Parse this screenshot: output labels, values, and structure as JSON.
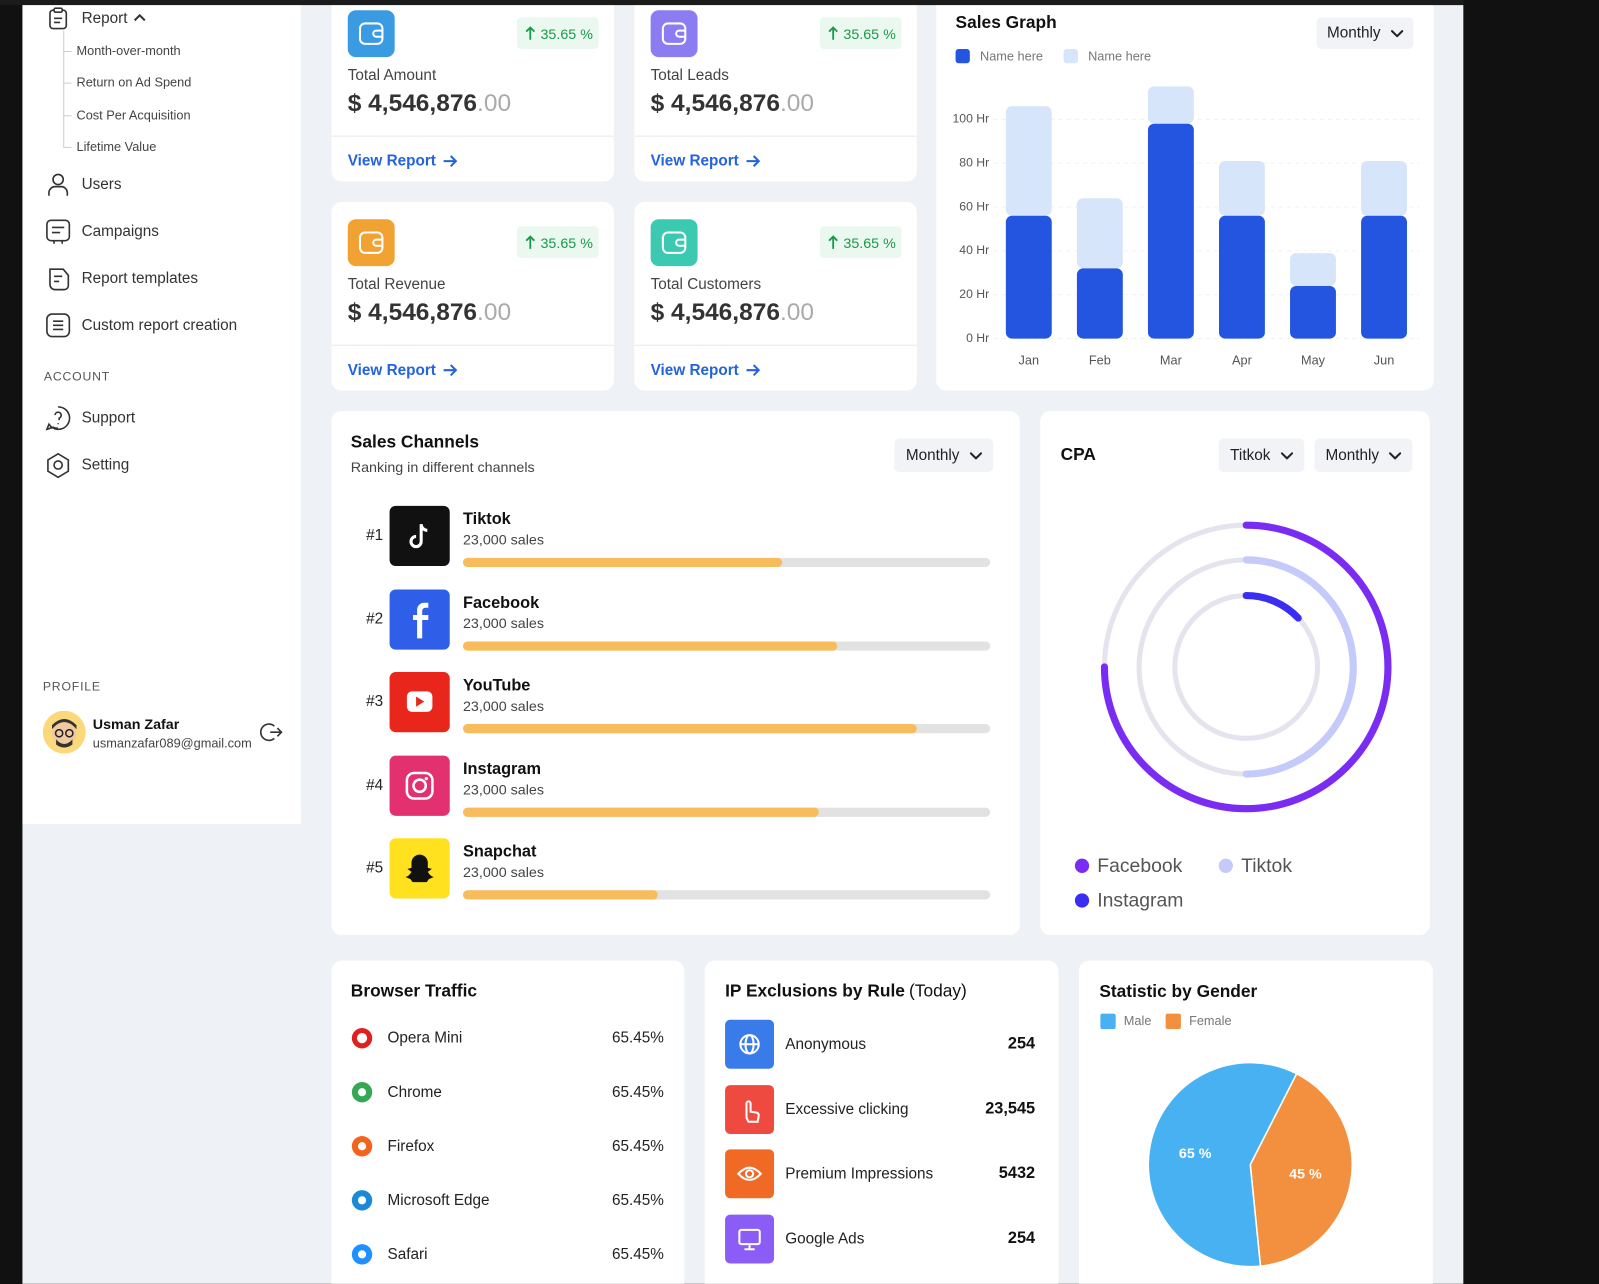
{
  "sidebar": {
    "report_menu": {
      "label": "Report",
      "items": [
        "Month-over-month",
        "Return on Ad Spend",
        "Cost Per Acquisition",
        "Lifetime Value"
      ]
    },
    "nav": [
      "Users",
      "Campaigns",
      "Report templates",
      "Custom report creation"
    ],
    "account_heading": "ACCOUNT",
    "account_nav": [
      "Support",
      "Setting"
    ],
    "profile_heading": "PROFILE",
    "profile": {
      "name": "Usman Zafar",
      "email": "usmanzafar089@gmail.com"
    }
  },
  "stat_cards": [
    {
      "label": "Total Amount",
      "amount": "$ 4,546,876",
      "decimals": ".00",
      "change": "35.65 %",
      "link": "View Report",
      "color": "#3a9be2"
    },
    {
      "label": "Total Leads",
      "amount": "$ 4,546,876",
      "decimals": ".00",
      "change": "35.65 %",
      "link": "View Report",
      "color": "#8b7cf2"
    },
    {
      "label": "Total Revenue",
      "amount": "$ 4,546,876",
      "decimals": ".00",
      "change": "35.65 %",
      "link": "View Report",
      "color": "#f2a233"
    },
    {
      "label": "Total Customers",
      "amount": "$ 4,546,876",
      "decimals": ".00",
      "change": "35.65 %",
      "link": "View Report",
      "color": "#3cc9b2"
    }
  ],
  "chart_data": [
    {
      "type": "bar",
      "stacked": true,
      "title": "Sales Graph",
      "period": "Monthly",
      "categories": [
        "Jan",
        "Feb",
        "Mar",
        "Apr",
        "May",
        "Jun"
      ],
      "series": [
        {
          "name": "Name here",
          "color": "#2455e0",
          "values": [
            56,
            32,
            98,
            56,
            24,
            56
          ]
        },
        {
          "name": "Name here",
          "color": "#d7e5fb",
          "values": [
            50,
            32,
            17,
            25,
            15,
            25
          ]
        }
      ],
      "ylim": [
        0,
        120
      ],
      "yticks": [
        {
          "value": 0,
          "label": "0 Hr"
        },
        {
          "value": 20,
          "label": "20 Hr"
        },
        {
          "value": 40,
          "label": "40 Hr"
        },
        {
          "value": 60,
          "label": "60 Hr"
        },
        {
          "value": 80,
          "label": "80 Hr"
        },
        {
          "value": 100,
          "label": "100 Hr"
        }
      ],
      "grid": true
    },
    {
      "type": "radial",
      "title": "CPA",
      "filters": [
        "Titkok",
        "Monthly"
      ],
      "categories": [
        "Facebook",
        "Tiktok",
        "Instagram"
      ],
      "values": [
        75,
        50,
        13
      ],
      "colors": [
        "#7b2cf2",
        "#c4cbfa",
        "#3a2ef0"
      ],
      "lim": [
        0,
        100
      ]
    },
    {
      "type": "pie",
      "title": "Statistic by Gender",
      "categories": [
        "Male",
        "Female"
      ],
      "values": [
        65,
        45
      ],
      "value_labels": [
        "65 %",
        "45 %"
      ],
      "colors": [
        "#48b1f1",
        "#f2903f"
      ]
    }
  ],
  "channels": {
    "title": "Sales Channels",
    "subtitle": "Ranking in different channels",
    "period": "Monthly",
    "progress_lim": [
      0,
      100
    ],
    "rows": [
      {
        "rank": "#1",
        "name": "Tiktok",
        "sales": "23,000 sales",
        "progress": 60.5,
        "color": "#111111"
      },
      {
        "rank": "#2",
        "name": "Facebook",
        "sales": "23,000 sales",
        "progress": 71,
        "color": "#2f5fe8"
      },
      {
        "rank": "#3",
        "name": "YouTube",
        "sales": "23,000 sales",
        "progress": 86,
        "color": "#e8261c"
      },
      {
        "rank": "#4",
        "name": "Instagram",
        "sales": "23,000 sales",
        "progress": 67.5,
        "color": "#e3306e"
      },
      {
        "rank": "#5",
        "name": "Snapchat",
        "sales": "23,000 sales",
        "progress": 37,
        "color": "#ffe11f"
      }
    ]
  },
  "browser_traffic": {
    "title": "Browser Traffic",
    "rows": [
      {
        "name": "Opera Mini",
        "share": "65.45%",
        "color": "#e0201f"
      },
      {
        "name": "Chrome",
        "share": "65.45%",
        "color": "#34a853"
      },
      {
        "name": "Firefox",
        "share": "65.45%",
        "color": "#f2641e"
      },
      {
        "name": "Microsoft Edge",
        "share": "65.45%",
        "color": "#1b8ad6"
      },
      {
        "name": "Safari",
        "share": "65.45%",
        "color": "#1e90ff"
      }
    ]
  },
  "ip_exclusions": {
    "title": "IP Exclusions by Rule",
    "title_note": "(Today)",
    "rows": [
      {
        "rule": "Anonymous",
        "count": "254",
        "color": "#3a7bea"
      },
      {
        "rule": "Excessive clicking",
        "count": "23,545",
        "color": "#ee4a40"
      },
      {
        "rule": "Premium Impressions",
        "count": "5432",
        "color": "#f06a25"
      },
      {
        "rule": "Google Ads",
        "count": "254",
        "color": "#8b5cf6"
      }
    ]
  }
}
